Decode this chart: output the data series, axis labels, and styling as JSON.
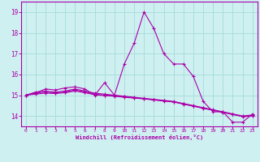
{
  "xlabel": "Windchill (Refroidissement éolien,°C)",
  "background_color": "#cff0f0",
  "grid_color": "#aadddd",
  "line_color": "#aa00aa",
  "xlim": [
    -0.5,
    23.5
  ],
  "ylim": [
    13.5,
    19.5
  ],
  "yticks": [
    14,
    15,
    16,
    17,
    18,
    19
  ],
  "xticks": [
    0,
    1,
    2,
    3,
    4,
    5,
    6,
    7,
    8,
    9,
    10,
    11,
    12,
    13,
    14,
    15,
    16,
    17,
    18,
    19,
    20,
    21,
    22,
    23
  ],
  "series": [
    {
      "x": [
        0,
        1,
        2,
        3,
        4,
        5,
        6,
        7,
        8,
        9,
        10,
        11,
        12,
        13,
        14,
        15,
        16,
        17,
        18,
        19,
        20,
        21,
        22,
        23
      ],
      "y": [
        15.0,
        15.1,
        15.3,
        15.25,
        15.35,
        15.4,
        15.3,
        15.0,
        15.6,
        15.0,
        16.5,
        17.5,
        19.0,
        18.2,
        17.0,
        16.5,
        16.5,
        15.9,
        14.7,
        14.2,
        14.2,
        13.7,
        13.7,
        14.1
      ]
    },
    {
      "x": [
        0,
        1,
        2,
        3,
        4,
        5,
        6,
        7,
        8,
        9,
        10,
        11,
        12,
        13,
        14,
        15,
        16,
        17,
        18,
        19,
        20,
        21,
        22,
        23
      ],
      "y": [
        15.0,
        15.15,
        15.2,
        15.15,
        15.2,
        15.3,
        15.2,
        15.1,
        15.05,
        15.0,
        14.95,
        14.9,
        14.85,
        14.8,
        14.75,
        14.7,
        14.6,
        14.5,
        14.4,
        14.3,
        14.2,
        14.1,
        14.0,
        14.05
      ]
    },
    {
      "x": [
        0,
        1,
        2,
        3,
        4,
        5,
        6,
        7,
        8,
        9,
        10,
        11,
        12,
        13,
        14,
        15,
        16,
        17,
        18,
        19,
        20,
        21,
        22,
        23
      ],
      "y": [
        15.0,
        15.1,
        15.15,
        15.1,
        15.15,
        15.25,
        15.15,
        15.05,
        15.0,
        14.98,
        14.93,
        14.88,
        14.83,
        14.78,
        14.73,
        14.68,
        14.58,
        14.48,
        14.38,
        14.28,
        14.18,
        14.08,
        13.98,
        14.0
      ]
    },
    {
      "x": [
        0,
        1,
        2,
        3,
        4,
        5,
        6,
        7,
        8,
        9,
        10,
        11,
        12,
        13,
        14,
        15,
        16,
        17,
        18,
        19,
        20,
        21,
        22,
        23
      ],
      "y": [
        15.0,
        15.05,
        15.1,
        15.08,
        15.12,
        15.2,
        15.12,
        15.02,
        14.98,
        14.95,
        14.9,
        14.86,
        14.82,
        14.77,
        14.72,
        14.67,
        14.57,
        14.47,
        14.37,
        14.27,
        14.17,
        14.07,
        13.97,
        13.99
      ]
    }
  ]
}
